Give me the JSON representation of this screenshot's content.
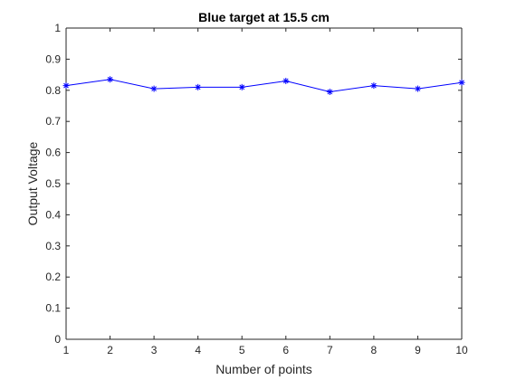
{
  "chart_data": {
    "type": "line",
    "title": "Blue target at 15.5 cm",
    "xlabel": "Number of points",
    "ylabel": "Output Voltage",
    "xlim": [
      1,
      10
    ],
    "ylim": [
      0,
      1
    ],
    "x_ticks": [
      "1",
      "2",
      "3",
      "4",
      "5",
      "6",
      "7",
      "8",
      "9",
      "10"
    ],
    "y_ticks": [
      "0",
      "0.1",
      "0.2",
      "0.3",
      "0.4",
      "0.5",
      "0.6",
      "0.7",
      "0.8",
      "0.9",
      "1"
    ],
    "grid": false,
    "marker": "asterisk",
    "line_color": "#0000ff",
    "x": [
      1,
      2,
      3,
      4,
      5,
      6,
      7,
      8,
      9,
      10
    ],
    "series": [
      {
        "values": [
          0.815,
          0.835,
          0.805,
          0.81,
          0.81,
          0.83,
          0.795,
          0.815,
          0.805,
          0.825
        ]
      }
    ]
  }
}
